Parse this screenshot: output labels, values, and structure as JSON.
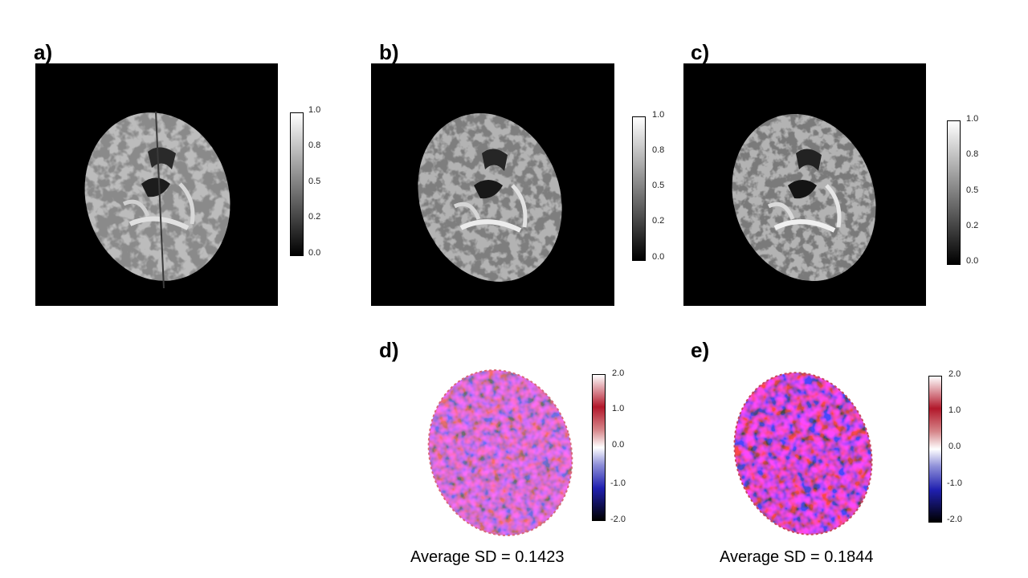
{
  "panels": {
    "a": {
      "label": "a)",
      "colorbar_ticks": [
        "1.0",
        "0.8",
        "0.5",
        "0.2",
        "0.0"
      ]
    },
    "b": {
      "label": "b)",
      "colorbar_ticks": [
        "1.0",
        "0.8",
        "0.5",
        "0.2",
        "0.0"
      ]
    },
    "c": {
      "label": "c)",
      "colorbar_ticks": [
        "1.0",
        "0.8",
        "0.5",
        "0.2",
        "0.0"
      ]
    },
    "d": {
      "label": "d)",
      "colorbar_ticks": [
        "2.0",
        "1.0",
        "0.0",
        "-1.0",
        "-2.0"
      ],
      "caption": "Average SD = 0.1423"
    },
    "e": {
      "label": "e)",
      "colorbar_ticks": [
        "2.0",
        "1.0",
        "0.0",
        "-1.0",
        "-2.0"
      ],
      "caption": "Average SD = 0.1844"
    }
  },
  "colors": {
    "image_background": "#000000",
    "grayscale_map": [
      "#000000",
      "#ffffff"
    ],
    "diverging_map": [
      "#000000",
      "#2020b0",
      "#ffffff",
      "#b2182b",
      "#ffffff"
    ]
  }
}
